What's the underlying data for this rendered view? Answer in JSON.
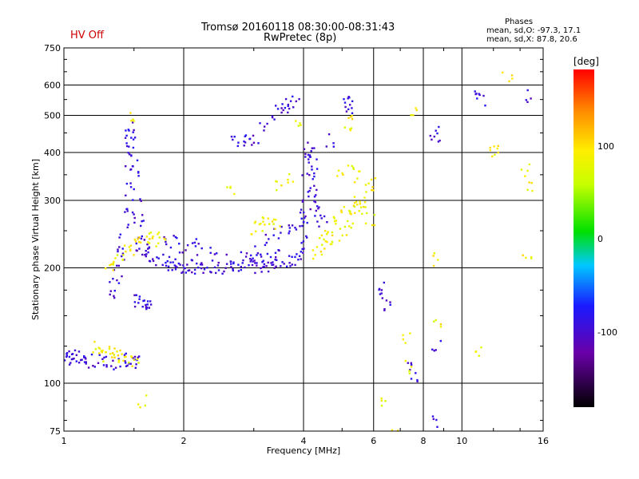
{
  "header": {
    "status_label": "HV Off",
    "title_line1": "Tromsø 20160118 08:30:00-08:31:43",
    "title_line2": "RwPretec (8p)",
    "stats_title": "Phases",
    "stats_o": "mean, sd,O: -97.3, 17.1",
    "stats_x": "mean, sd,X: 87.8, 20.6"
  },
  "colorbar": {
    "unit": "[deg]",
    "ticks": [
      "100",
      "0",
      "-100"
    ]
  },
  "chart_data": {
    "type": "scatter",
    "title": "Tromsø 20160118 08:30:00-08:31:43",
    "subtitle": "RwPretec (8p)",
    "xlabel": "Frequency [MHz]",
    "ylabel": "Stationary phase Virtual Height [km]",
    "x_scale": "log",
    "y_scale": "log",
    "xlim": [
      1,
      16
    ],
    "ylim": [
      75,
      750
    ],
    "x_ticks": [
      1,
      2,
      4,
      6,
      8,
      10,
      16
    ],
    "y_ticks": [
      75,
      100,
      200,
      300,
      400,
      500,
      600,
      750
    ],
    "grid": true,
    "color_scale": {
      "label": "[deg]",
      "range": [
        -180,
        180
      ],
      "ticks": [
        100,
        0,
        -100
      ]
    },
    "series": [
      {
        "trace": "O",
        "phase_mean": -97.3,
        "phase_sd": 17.1,
        "points": [
          [
            1.0,
            117
          ],
          [
            1.02,
            116
          ],
          [
            1.04,
            118
          ],
          [
            1.06,
            115
          ],
          [
            1.08,
            117
          ],
          [
            1.1,
            114
          ],
          [
            1.13,
            115
          ],
          [
            1.16,
            113
          ],
          [
            1.2,
            115
          ],
          [
            1.25,
            114
          ],
          [
            1.3,
            113
          ],
          [
            1.35,
            114
          ],
          [
            1.4,
            115
          ],
          [
            1.45,
            114
          ],
          [
            1.5,
            113
          ],
          [
            1.52,
            115
          ],
          [
            1.32,
            170
          ],
          [
            1.34,
            180
          ],
          [
            1.36,
            195
          ],
          [
            1.38,
            210
          ],
          [
            1.4,
            225
          ],
          [
            1.42,
            250
          ],
          [
            1.43,
            280
          ],
          [
            1.44,
            320
          ],
          [
            1.45,
            360
          ],
          [
            1.46,
            410
          ],
          [
            1.47,
            450
          ],
          [
            1.48,
            470
          ],
          [
            1.49,
            430
          ],
          [
            1.5,
            390
          ],
          [
            1.51,
            350
          ],
          [
            1.52,
            310
          ],
          [
            1.53,
            280
          ],
          [
            1.54,
            260
          ],
          [
            1.55,
            240
          ],
          [
            1.56,
            230
          ],
          [
            1.58,
            225
          ],
          [
            1.6,
            220
          ],
          [
            1.52,
            165
          ],
          [
            1.55,
            162
          ],
          [
            1.58,
            160
          ],
          [
            1.61,
            160
          ],
          [
            1.64,
            162
          ],
          [
            1.65,
            215
          ],
          [
            1.7,
            212
          ],
          [
            1.75,
            210
          ],
          [
            1.8,
            207
          ],
          [
            1.85,
            205
          ],
          [
            1.9,
            203
          ],
          [
            1.95,
            202
          ],
          [
            2.0,
            201
          ],
          [
            2.05,
            202
          ],
          [
            2.1,
            201
          ],
          [
            2.15,
            200
          ],
          [
            2.2,
            202
          ],
          [
            2.3,
            201
          ],
          [
            2.4,
            200
          ],
          [
            2.5,
            201
          ],
          [
            2.6,
            202
          ],
          [
            2.7,
            201
          ],
          [
            2.8,
            200
          ],
          [
            2.9,
            201
          ],
          [
            3.0,
            202
          ],
          [
            3.1,
            202
          ],
          [
            3.2,
            203
          ],
          [
            3.3,
            204
          ],
          [
            3.4,
            205
          ],
          [
            3.5,
            206
          ],
          [
            3.6,
            208
          ],
          [
            3.7,
            210
          ],
          [
            3.8,
            212
          ],
          [
            1.8,
            240
          ],
          [
            1.9,
            235
          ],
          [
            2.0,
            228
          ],
          [
            2.1,
            232
          ],
          [
            2.2,
            225
          ],
          [
            2.4,
            220
          ],
          [
            2.6,
            215
          ],
          [
            2.8,
            212
          ],
          [
            3.0,
            210
          ],
          [
            3.2,
            215
          ],
          [
            3.4,
            220
          ],
          [
            3.9,
            215
          ],
          [
            3.95,
            230
          ],
          [
            4.0,
            250
          ],
          [
            4.02,
            270
          ],
          [
            4.04,
            290
          ],
          [
            4.06,
            320
          ],
          [
            4.08,
            350
          ],
          [
            4.1,
            380
          ],
          [
            4.12,
            410
          ],
          [
            4.15,
            400
          ],
          [
            4.2,
            370
          ],
          [
            4.25,
            340
          ],
          [
            4.3,
            310
          ],
          [
            4.35,
            290
          ],
          [
            4.4,
            275
          ],
          [
            4.45,
            265
          ],
          [
            3.0,
            220
          ],
          [
            3.2,
            235
          ],
          [
            3.4,
            245
          ],
          [
            3.6,
            255
          ],
          [
            3.8,
            262
          ],
          [
            4.0,
            270
          ],
          [
            2.7,
            430
          ],
          [
            2.8,
            425
          ],
          [
            2.9,
            430
          ],
          [
            3.0,
            440
          ],
          [
            3.2,
            460
          ],
          [
            3.4,
            500
          ],
          [
            3.5,
            520
          ],
          [
            3.6,
            530
          ],
          [
            3.7,
            535
          ],
          [
            3.8,
            540
          ],
          [
            5.1,
            540
          ],
          [
            5.15,
            530
          ],
          [
            5.2,
            520
          ],
          [
            4.7,
            430
          ],
          [
            6.3,
            180
          ],
          [
            6.4,
            170
          ],
          [
            6.5,
            160
          ],
          [
            7.5,
            110
          ],
          [
            7.6,
            105
          ],
          [
            8.5,
            450
          ],
          [
            8.6,
            440
          ],
          [
            8.6,
            125
          ],
          [
            8.7,
            80
          ],
          [
            11.0,
            560
          ],
          [
            11.2,
            545
          ],
          [
            14.5,
            560
          ]
        ]
      },
      {
        "trace": "X",
        "phase_mean": 87.8,
        "phase_sd": 20.6,
        "points": [
          [
            1.2,
            125
          ],
          [
            1.25,
            122
          ],
          [
            1.3,
            120
          ],
          [
            1.35,
            118
          ],
          [
            1.4,
            116
          ],
          [
            1.45,
            115
          ],
          [
            1.5,
            114
          ],
          [
            1.25,
            118
          ],
          [
            1.35,
            121
          ],
          [
            1.3,
            200
          ],
          [
            1.35,
            205
          ],
          [
            1.4,
            210
          ],
          [
            1.45,
            220
          ],
          [
            1.5,
            225
          ],
          [
            1.55,
            232
          ],
          [
            1.6,
            240
          ],
          [
            1.65,
            245
          ],
          [
            1.7,
            240
          ],
          [
            1.75,
            235
          ],
          [
            3.0,
            255
          ],
          [
            3.1,
            260
          ],
          [
            3.2,
            265
          ],
          [
            3.3,
            262
          ],
          [
            3.4,
            258
          ],
          [
            4.2,
            220
          ],
          [
            4.4,
            225
          ],
          [
            4.6,
            230
          ],
          [
            4.8,
            240
          ],
          [
            5.0,
            250
          ],
          [
            5.2,
            265
          ],
          [
            5.4,
            285
          ],
          [
            5.6,
            300
          ],
          [
            5.8,
            320
          ],
          [
            6.0,
            330
          ],
          [
            4.5,
            245
          ],
          [
            4.7,
            255
          ],
          [
            4.9,
            270
          ],
          [
            5.1,
            280
          ],
          [
            5.3,
            290
          ],
          [
            5.5,
            300
          ],
          [
            5.7,
            280
          ],
          [
            5.9,
            265
          ],
          [
            5.0,
            350
          ],
          [
            5.2,
            360
          ],
          [
            5.4,
            345
          ],
          [
            5.2,
            470
          ],
          [
            5.3,
            480
          ],
          [
            1.5,
            500
          ],
          [
            1.58,
            90
          ],
          [
            2.6,
            320
          ],
          [
            3.5,
            330
          ],
          [
            3.7,
            340
          ],
          [
            3.9,
            470
          ],
          [
            6.4,
            88
          ],
          [
            6.8,
            75
          ],
          [
            7.2,
            130
          ],
          [
            7.4,
            110
          ],
          [
            7.6,
            520
          ],
          [
            8.6,
            210
          ],
          [
            8.7,
            145
          ],
          [
            11.0,
            120
          ],
          [
            12.0,
            400
          ],
          [
            12.1,
            410
          ],
          [
            14.5,
            210
          ],
          [
            14.6,
            330
          ],
          [
            14.4,
            360
          ],
          [
            13.0,
            630
          ]
        ]
      }
    ]
  }
}
